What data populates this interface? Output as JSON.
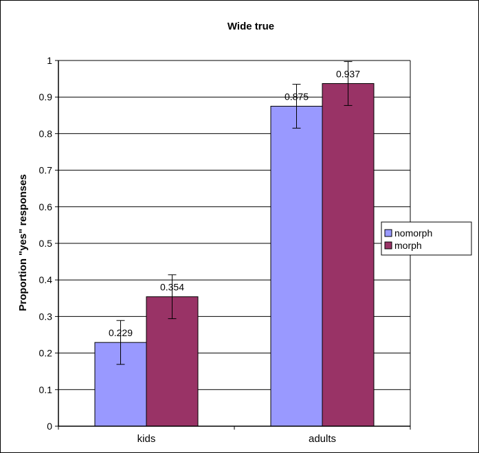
{
  "chart_data": {
    "type": "bar",
    "title": "Wide true",
    "xlabel": "",
    "ylabel": "Proportion \"yes\" responses",
    "categories": [
      "kids",
      "adults"
    ],
    "ylim": [
      0,
      1
    ],
    "yticks": [
      "0",
      "0.1",
      "0.2",
      "0.3",
      "0.4",
      "0.5",
      "0.6",
      "0.7",
      "0.8",
      "0.9",
      "1"
    ],
    "grid": true,
    "legend_position": "right",
    "series": [
      {
        "name": "nomorph",
        "values": [
          0.229,
          0.875
        ],
        "labels": [
          "0.229",
          "0.875"
        ],
        "error": [
          0.06,
          0.06
        ],
        "color": "#9999ff"
      },
      {
        "name": "morph",
        "values": [
          0.354,
          0.937
        ],
        "labels": [
          "0.354",
          "0.937"
        ],
        "error": [
          0.06,
          0.06
        ],
        "color": "#993366"
      }
    ]
  }
}
